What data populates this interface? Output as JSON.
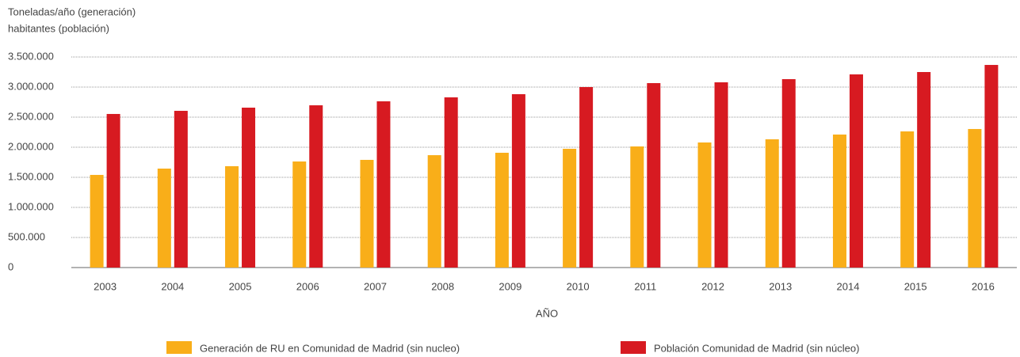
{
  "chart_data": {
    "type": "bar",
    "ylabel": [
      "Toneladas/año (generación)",
      "habitantes (población)"
    ],
    "xlabel": "AÑO",
    "categories": [
      "2003",
      "2004",
      "2005",
      "2006",
      "2007",
      "2008",
      "2009",
      "2010",
      "2011",
      "2012",
      "2013",
      "2014",
      "2015",
      "2016"
    ],
    "series": [
      {
        "name": "Generación de RU en Comunidad de Madrid (sin nucleo)",
        "color": "#f9ae19",
        "values": [
          1540000,
          1645000,
          1685000,
          1763000,
          1790000,
          1868000,
          1908000,
          1974000,
          2013000,
          2079000,
          2132000,
          2211000,
          2263000,
          2303000
        ]
      },
      {
        "name": "Población Comunidad de Madrid (sin núcleo)",
        "color": "#d71a21",
        "values": [
          2553000,
          2605000,
          2658000,
          2697000,
          2763000,
          2829000,
          2882000,
          3000000,
          3066000,
          3079000,
          3132000,
          3211000,
          3250000,
          3368000
        ]
      }
    ],
    "ylim": [
      0,
      3500000
    ],
    "yticks": [
      0,
      {
        "value": 500000,
        "label": "500.000"
      },
      {
        "value": 1000000,
        "label": "1.000.000"
      },
      {
        "value": 1500000,
        "label": "1.500.000"
      },
      {
        "value": 2000000,
        "label": "2.000.000"
      },
      {
        "value": 2500000,
        "label": "2.500.000"
      },
      {
        "value": 3000000,
        "label": "3.000.000"
      },
      {
        "value": 3500000,
        "label": "3.500.000"
      }
    ],
    "grid": true,
    "legend": "bottom"
  }
}
